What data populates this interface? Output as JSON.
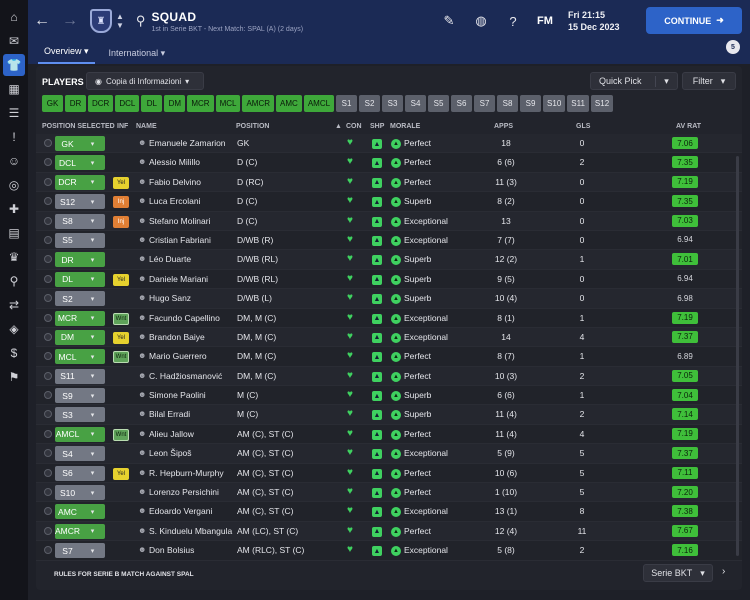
{
  "header": {
    "title": "SQUAD",
    "subtitle": "1st in Serie BKT - Next Match: SPAL (A) (2 days)",
    "date_time": "Fri 21:15",
    "date": "15 Dec 2023",
    "continue_label": "CONTINUE",
    "logo_text": "FM",
    "notifications": "5"
  },
  "tabs": [
    {
      "label": "Overview"
    },
    {
      "label": "International"
    }
  ],
  "players_label": "PLAYERS",
  "view_select": "Copia di Informazioni",
  "quick_pick": "Quick Pick",
  "filter_label": "Filter",
  "position_chips": [
    {
      "label": "GK",
      "on": true
    },
    {
      "label": "DR",
      "on": true
    },
    {
      "label": "DCR",
      "on": true
    },
    {
      "label": "DCL",
      "on": true
    },
    {
      "label": "DL",
      "on": true
    },
    {
      "label": "DM",
      "on": true
    },
    {
      "label": "MCR",
      "on": true
    },
    {
      "label": "MCL",
      "on": true
    },
    {
      "label": "AMCR",
      "on": true
    },
    {
      "label": "AMC",
      "on": true
    },
    {
      "label": "AMCL",
      "on": true
    },
    {
      "label": "S1",
      "on": false
    },
    {
      "label": "S2",
      "on": false
    },
    {
      "label": "S3",
      "on": false
    },
    {
      "label": "S4",
      "on": false
    },
    {
      "label": "S5",
      "on": false
    },
    {
      "label": "S6",
      "on": false
    },
    {
      "label": "S7",
      "on": false
    },
    {
      "label": "S8",
      "on": false
    },
    {
      "label": "S9",
      "on": false
    },
    {
      "label": "S10",
      "on": false
    },
    {
      "label": "S11",
      "on": false
    },
    {
      "label": "S12",
      "on": false
    }
  ],
  "columns": {
    "position_selected": "POSITION SELECTED",
    "inf": "INF",
    "name": "NAME",
    "position": "POSITION",
    "con": "CON",
    "shp": "SHP",
    "morale": "MORALE",
    "apps": "APPS",
    "gls": "GLS",
    "av_rat": "AV RAT"
  },
  "players": [
    {
      "sel": "GK",
      "sel_on": true,
      "inf": "",
      "name": "Emanuele Zamarion",
      "position": "GK",
      "morale": "Perfect",
      "apps": "18",
      "gls": "0",
      "rat": "7.06",
      "rat_hi": true
    },
    {
      "sel": "DCL",
      "sel_on": true,
      "inf": "",
      "name": "Alessio Milillo",
      "position": "D (C)",
      "morale": "Perfect",
      "apps": "6 (6)",
      "gls": "2",
      "rat": "7.35",
      "rat_hi": true
    },
    {
      "sel": "DCR",
      "sel_on": true,
      "inf": "Yel",
      "name": "Fabio Delvino",
      "position": "D (RC)",
      "morale": "Perfect",
      "apps": "11 (3)",
      "gls": "0",
      "rat": "7.19",
      "rat_hi": true
    },
    {
      "sel": "S12",
      "sel_on": false,
      "inf": "Inj",
      "name": "Luca Ercolani",
      "position": "D (C)",
      "morale": "Superb",
      "apps": "8 (2)",
      "gls": "0",
      "rat": "7.35",
      "rat_hi": true
    },
    {
      "sel": "S8",
      "sel_on": false,
      "inf": "Inj",
      "name": "Stefano Molinari",
      "position": "D (C)",
      "morale": "Exceptional",
      "apps": "13",
      "gls": "0",
      "rat": "7.03",
      "rat_hi": true
    },
    {
      "sel": "S5",
      "sel_on": false,
      "inf": "",
      "name": "Cristian Fabriani",
      "position": "D/WB (R)",
      "morale": "Exceptional",
      "apps": "7 (7)",
      "gls": "0",
      "rat": "6.94",
      "rat_hi": false
    },
    {
      "sel": "DR",
      "sel_on": true,
      "inf": "",
      "name": "Léo Duarte",
      "position": "D/WB (RL)",
      "morale": "Superb",
      "apps": "12 (2)",
      "gls": "1",
      "rat": "7.01",
      "rat_hi": true
    },
    {
      "sel": "DL",
      "sel_on": true,
      "inf": "Yel",
      "name": "Daniele Mariani",
      "position": "D/WB (RL)",
      "morale": "Superb",
      "apps": "9 (5)",
      "gls": "0",
      "rat": "6.94",
      "rat_hi": false
    },
    {
      "sel": "S2",
      "sel_on": false,
      "inf": "",
      "name": "Hugo Sanz",
      "position": "D/WB (L)",
      "morale": "Superb",
      "apps": "10 (4)",
      "gls": "0",
      "rat": "6.98",
      "rat_hi": false
    },
    {
      "sel": "MCR",
      "sel_on": true,
      "inf": "Wnt",
      "name": "Facundo Capellino",
      "position": "DM, M (C)",
      "morale": "Exceptional",
      "apps": "8 (1)",
      "gls": "1",
      "rat": "7.19",
      "rat_hi": true
    },
    {
      "sel": "DM",
      "sel_on": true,
      "inf": "Yel",
      "name": "Brandon Baiye",
      "position": "DM, M (C)",
      "morale": "Exceptional",
      "apps": "14",
      "gls": "4",
      "rat": "7.37",
      "rat_hi": true
    },
    {
      "sel": "MCL",
      "sel_on": true,
      "inf": "Wnt",
      "name": "Mario Guerrero",
      "position": "DM, M (C)",
      "morale": "Perfect",
      "apps": "8 (7)",
      "gls": "1",
      "rat": "6.89",
      "rat_hi": false
    },
    {
      "sel": "S11",
      "sel_on": false,
      "inf": "",
      "name": "C. Hadžiosmanović",
      "position": "DM, M (C)",
      "morale": "Perfect",
      "apps": "10 (3)",
      "gls": "2",
      "rat": "7.05",
      "rat_hi": true
    },
    {
      "sel": "S9",
      "sel_on": false,
      "inf": "",
      "name": "Simone Paolini",
      "position": "M (C)",
      "morale": "Superb",
      "apps": "6 (6)",
      "gls": "1",
      "rat": "7.04",
      "rat_hi": true
    },
    {
      "sel": "S3",
      "sel_on": false,
      "inf": "",
      "name": "Bilal Erradi",
      "position": "M (C)",
      "morale": "Superb",
      "apps": "11 (4)",
      "gls": "2",
      "rat": "7.14",
      "rat_hi": true
    },
    {
      "sel": "AMCL",
      "sel_on": true,
      "inf": "Wnt",
      "name": "Alieu Jallow",
      "position": "AM (C), ST (C)",
      "morale": "Perfect",
      "apps": "11 (4)",
      "gls": "4",
      "rat": "7.19",
      "rat_hi": true
    },
    {
      "sel": "S4",
      "sel_on": false,
      "inf": "",
      "name": "Leon Šipoš",
      "position": "AM (C), ST (C)",
      "morale": "Exceptional",
      "apps": "5 (9)",
      "gls": "5",
      "rat": "7.37",
      "rat_hi": true
    },
    {
      "sel": "S6",
      "sel_on": false,
      "inf": "Yel",
      "name": "R. Hepburn-Murphy",
      "position": "AM (C), ST (C)",
      "morale": "Perfect",
      "apps": "10 (6)",
      "gls": "5",
      "rat": "7.11",
      "rat_hi": true
    },
    {
      "sel": "S10",
      "sel_on": false,
      "inf": "",
      "name": "Lorenzo Persichini",
      "position": "AM (C), ST (C)",
      "morale": "Perfect",
      "apps": "1 (10)",
      "gls": "5",
      "rat": "7.20",
      "rat_hi": true
    },
    {
      "sel": "AMC",
      "sel_on": true,
      "inf": "",
      "name": "Edoardo Vergani",
      "position": "AM (C), ST (C)",
      "morale": "Exceptional",
      "apps": "13 (1)",
      "gls": "8",
      "rat": "7.38",
      "rat_hi": true
    },
    {
      "sel": "AMCR",
      "sel_on": true,
      "inf": "",
      "name": "S. Kinduelu Mbangula",
      "position": "AM (LC), ST (C)",
      "morale": "Perfect",
      "apps": "12 (4)",
      "gls": "11",
      "rat": "7.67",
      "rat_hi": true
    },
    {
      "sel": "S7",
      "sel_on": false,
      "inf": "",
      "name": "Don Bolsius",
      "position": "AM (RLC), ST (C)",
      "morale": "Exceptional",
      "apps": "5 (8)",
      "gls": "2",
      "rat": "7.16",
      "rat_hi": true
    }
  ],
  "footer": {
    "rules_text": "RULES FOR SERIE B MATCH AGAINST SPAL",
    "league_select": "Serie BKT"
  }
}
